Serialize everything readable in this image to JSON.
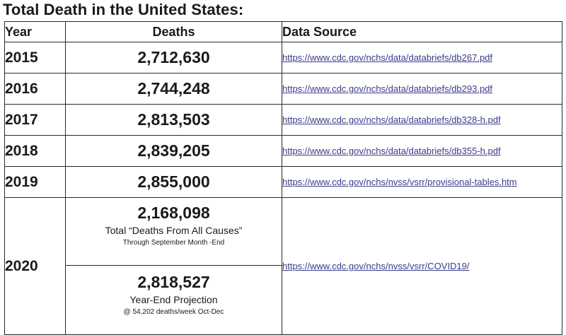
{
  "title": "Total Death in the United States:",
  "headers": {
    "year": "Year",
    "deaths": "Deaths",
    "source": "Data Source"
  },
  "rows": [
    {
      "year": "2015",
      "deaths": "2,712,630",
      "source": "https://www.cdc.gov/nchs/data/databriefs/db267.pdf"
    },
    {
      "year": "2016",
      "deaths": "2,744,248",
      "source": "https://www.cdc.gov/nchs/data/databriefs/db293.pdf"
    },
    {
      "year": "2017",
      "deaths": "2,813,503",
      "source": "https://www.cdc.gov/nchs/data/databriefs/db328-h.pdf"
    },
    {
      "year": "2018",
      "deaths": "2,839,205",
      "source": "https://www.cdc.gov/nchs/data/databriefs/db355-h.pdf"
    },
    {
      "year": "2019",
      "deaths": "2,855,000",
      "source": "https://www.cdc.gov/nchs/nvss/vsrr/provisional-tables.htm"
    }
  ],
  "row2020": {
    "year": "2020",
    "part1": {
      "deaths": "2,168,098",
      "label": "Total “Deaths From All Causes”",
      "note": "Through September Month -End"
    },
    "part2": {
      "deaths": "2,818,527",
      "label": "Year-End Projection",
      "note": "@ 54,202 deaths/week Oct-Dec"
    },
    "source": "https://www.cdc.gov/nchs/nvss/vsrr/COVID19/"
  }
}
